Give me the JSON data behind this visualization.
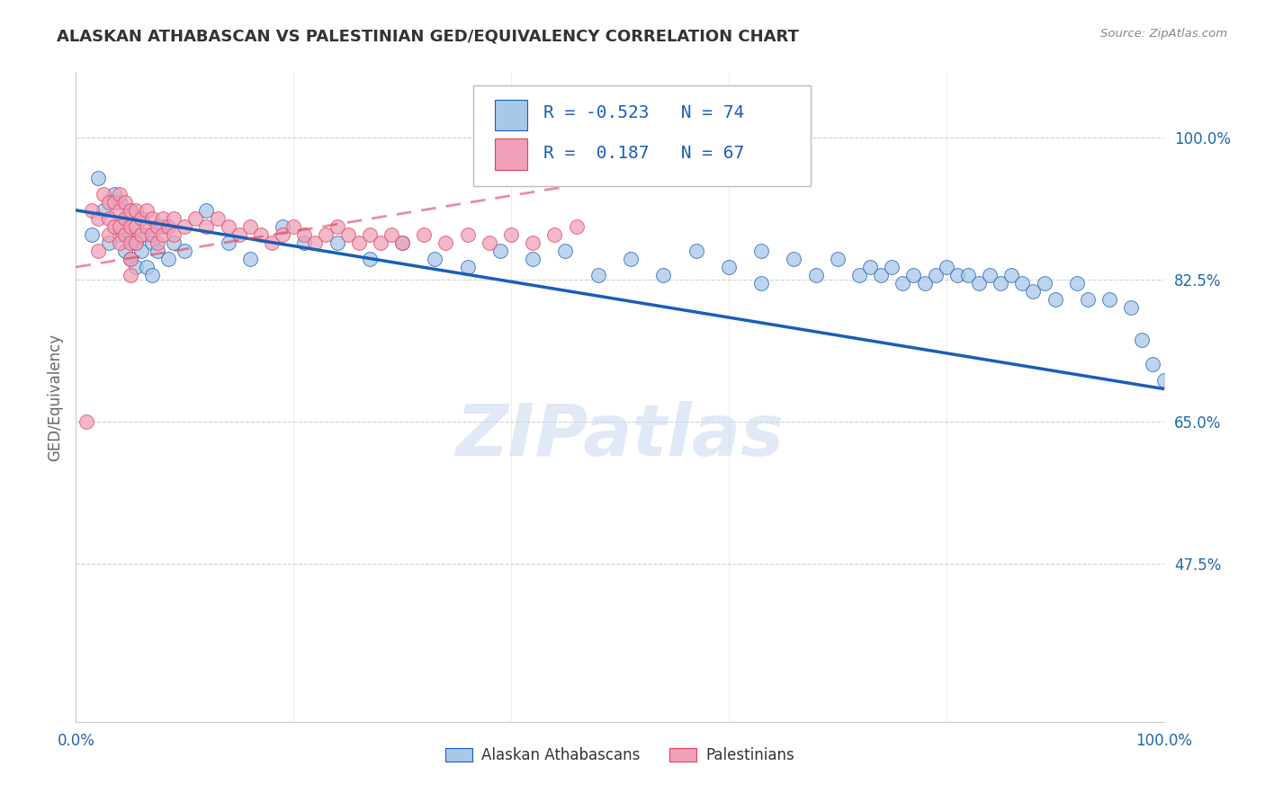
{
  "title": "ALASKAN ATHABASCAN VS PALESTINIAN GED/EQUIVALENCY CORRELATION CHART",
  "source": "Source: ZipAtlas.com",
  "ylabel": "GED/Equivalency",
  "watermark": "ZIPatlas",
  "legend_blue_r": "-0.523",
  "legend_blue_n": "74",
  "legend_pink_r": "0.187",
  "legend_pink_n": "67",
  "legend_blue_label": "Alaskan Athabascans",
  "legend_pink_label": "Palestinians",
  "blue_color": "#a8c8e8",
  "blue_line_color": "#1a5eb8",
  "pink_color": "#f0a0b8",
  "pink_line_color": "#e04060",
  "ytick_labels": [
    "100.0%",
    "82.5%",
    "65.0%",
    "47.5%"
  ],
  "ytick_values": [
    1.0,
    0.825,
    0.65,
    0.475
  ],
  "xlim": [
    0.0,
    1.0
  ],
  "ylim": [
    0.28,
    1.08
  ],
  "blue_scatter_x": [
    0.015,
    0.02,
    0.025,
    0.03,
    0.035,
    0.04,
    0.04,
    0.045,
    0.045,
    0.05,
    0.05,
    0.05,
    0.055,
    0.055,
    0.06,
    0.06,
    0.065,
    0.065,
    0.07,
    0.07,
    0.075,
    0.08,
    0.085,
    0.09,
    0.1,
    0.12,
    0.14,
    0.16,
    0.19,
    0.21,
    0.24,
    0.27,
    0.3,
    0.33,
    0.36,
    0.39,
    0.42,
    0.45,
    0.48,
    0.51,
    0.54,
    0.57,
    0.6,
    0.63,
    0.63,
    0.66,
    0.68,
    0.7,
    0.72,
    0.73,
    0.74,
    0.75,
    0.76,
    0.77,
    0.78,
    0.79,
    0.8,
    0.81,
    0.82,
    0.83,
    0.84,
    0.85,
    0.86,
    0.87,
    0.88,
    0.89,
    0.9,
    0.92,
    0.93,
    0.95,
    0.97,
    0.98,
    0.99,
    1.0
  ],
  "blue_scatter_y": [
    0.88,
    0.95,
    0.91,
    0.87,
    0.93,
    0.92,
    0.88,
    0.9,
    0.86,
    0.91,
    0.88,
    0.85,
    0.87,
    0.84,
    0.9,
    0.86,
    0.88,
    0.84,
    0.87,
    0.83,
    0.86,
    0.89,
    0.85,
    0.87,
    0.86,
    0.91,
    0.87,
    0.85,
    0.89,
    0.87,
    0.87,
    0.85,
    0.87,
    0.85,
    0.84,
    0.86,
    0.85,
    0.86,
    0.83,
    0.85,
    0.83,
    0.86,
    0.84,
    0.86,
    0.82,
    0.85,
    0.83,
    0.85,
    0.83,
    0.84,
    0.83,
    0.84,
    0.82,
    0.83,
    0.82,
    0.83,
    0.84,
    0.83,
    0.83,
    0.82,
    0.83,
    0.82,
    0.83,
    0.82,
    0.81,
    0.82,
    0.8,
    0.82,
    0.8,
    0.8,
    0.79,
    0.75,
    0.72,
    0.7
  ],
  "pink_scatter_x": [
    0.01,
    0.015,
    0.02,
    0.02,
    0.025,
    0.03,
    0.03,
    0.03,
    0.035,
    0.035,
    0.04,
    0.04,
    0.04,
    0.04,
    0.045,
    0.045,
    0.045,
    0.05,
    0.05,
    0.05,
    0.05,
    0.05,
    0.055,
    0.055,
    0.055,
    0.06,
    0.06,
    0.065,
    0.065,
    0.07,
    0.07,
    0.075,
    0.075,
    0.08,
    0.08,
    0.085,
    0.09,
    0.09,
    0.1,
    0.11,
    0.12,
    0.13,
    0.14,
    0.15,
    0.16,
    0.17,
    0.18,
    0.19,
    0.2,
    0.21,
    0.22,
    0.23,
    0.24,
    0.25,
    0.26,
    0.27,
    0.28,
    0.29,
    0.3,
    0.32,
    0.34,
    0.36,
    0.38,
    0.4,
    0.42,
    0.44,
    0.46
  ],
  "pink_scatter_y": [
    0.65,
    0.91,
    0.9,
    0.86,
    0.93,
    0.92,
    0.9,
    0.88,
    0.92,
    0.89,
    0.93,
    0.91,
    0.89,
    0.87,
    0.92,
    0.9,
    0.88,
    0.91,
    0.89,
    0.87,
    0.85,
    0.83,
    0.91,
    0.89,
    0.87,
    0.9,
    0.88,
    0.91,
    0.89,
    0.9,
    0.88,
    0.89,
    0.87,
    0.9,
    0.88,
    0.89,
    0.9,
    0.88,
    0.89,
    0.9,
    0.89,
    0.9,
    0.89,
    0.88,
    0.89,
    0.88,
    0.87,
    0.88,
    0.89,
    0.88,
    0.87,
    0.88,
    0.89,
    0.88,
    0.87,
    0.88,
    0.87,
    0.88,
    0.87,
    0.88,
    0.87,
    0.88,
    0.87,
    0.88,
    0.87,
    0.88,
    0.89
  ],
  "blue_trendline_x": [
    0.0,
    1.0
  ],
  "blue_trendline_y": [
    0.91,
    0.69
  ],
  "pink_trendline_x": [
    0.0,
    0.5
  ],
  "pink_trendline_y": [
    0.84,
    0.95
  ],
  "background_color": "#ffffff",
  "grid_color": "#d0d0d0",
  "title_color": "#333333",
  "title_fontsize": 13,
  "axis_label_color": "#666666",
  "tick_color": "#2166ac",
  "xtick_labels": [
    "0.0%",
    "100.0%"
  ],
  "xtick_positions": [
    0.0,
    1.0
  ]
}
